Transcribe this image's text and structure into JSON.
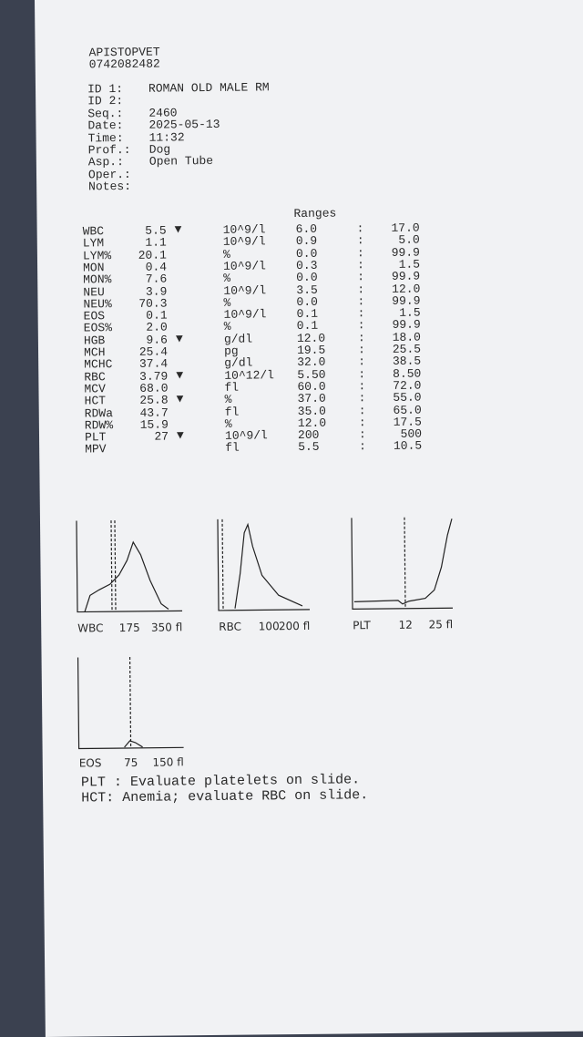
{
  "header": {
    "clinic": "APISTOPVET",
    "phone": "0742082482"
  },
  "info": [
    {
      "label": "ID 1:",
      "value": "ROMAN OLD MALE RM"
    },
    {
      "label": "ID 2:"
    },
    {
      "label": "Seq.:",
      "value": "2460"
    },
    {
      "label": "Date:",
      "value": "2025-05-13"
    },
    {
      "label": "Time:",
      "value": "11:32"
    },
    {
      "label": "Prof.:",
      "value": "Dog"
    },
    {
      "label": "Asp.:",
      "value": "Open Tube"
    },
    {
      "label": "Oper.:"
    },
    {
      "label": "Notes:"
    }
  ],
  "ranges_header": "Ranges",
  "range_separator": ":",
  "results": [
    {
      "name": "WBC",
      "value": "5.5",
      "flag": "▼",
      "unit": "10^9/l",
      "low": "6.0",
      "high": "17.0"
    },
    {
      "name": "LYM",
      "value": "1.1",
      "unit": "10^9/l",
      "low": "0.9",
      "high": "5.0"
    },
    {
      "name": "LYM%",
      "value": "20.1",
      "unit": "%",
      "low": "0.0",
      "high": "99.9"
    },
    {
      "name": "MON",
      "value": "0.4",
      "unit": "10^9/l",
      "low": "0.3",
      "high": "1.5"
    },
    {
      "name": "MON%",
      "value": "7.6",
      "unit": "%",
      "low": "0.0",
      "high": "99.9"
    },
    {
      "name": "NEU",
      "value": "3.9",
      "unit": "10^9/l",
      "low": "3.5",
      "high": "12.0"
    },
    {
      "name": "NEU%",
      "value": "70.3",
      "unit": "%",
      "low": "0.0",
      "high": "99.9"
    },
    {
      "name": "EOS",
      "value": "0.1",
      "unit": "10^9/l",
      "low": "0.1",
      "high": "1.5"
    },
    {
      "name": "EOS%",
      "value": "2.0",
      "unit": "%",
      "low": "0.1",
      "high": "99.9"
    },
    {
      "name": "HGB",
      "value": "9.6",
      "flag": "▼",
      "unit": "g/dl",
      "low": "12.0",
      "high": "18.0"
    },
    {
      "name": "MCH",
      "value": "25.4",
      "unit": "pg",
      "low": "19.5",
      "high": "25.5"
    },
    {
      "name": "MCHC",
      "value": "37.4",
      "unit": "g/dl",
      "low": "32.0",
      "high": "38.5"
    },
    {
      "name": "RBC",
      "value": "3.79",
      "flag": "▼",
      "unit": "10^12/l",
      "low": "5.50",
      "high": "8.50"
    },
    {
      "name": "MCV",
      "value": "68.0",
      "unit": "fl",
      "low": "60.0",
      "high": "72.0"
    },
    {
      "name": "HCT",
      "value": "25.8",
      "flag": "▼",
      "unit": "%",
      "low": "37.0",
      "high": "55.0"
    },
    {
      "name": "RDWa",
      "value": "43.7",
      "unit": "fl",
      "low": "35.0",
      "high": "65.0"
    },
    {
      "name": "RDW%",
      "value": "15.9",
      "unit": "%",
      "low": "12.0",
      "high": "17.5"
    },
    {
      "name": "PLT",
      "value": "27",
      "flag": "▼",
      "unit": "10^9/l",
      "low": "200",
      "high": "500"
    },
    {
      "name": "MPV",
      "unit": "fl",
      "low": "5.5",
      "high": "10.5"
    }
  ],
  "histograms": [
    {
      "label": "WBC",
      "ticks": [
        "175",
        "350 fl"
      ]
    },
    {
      "label": "RBC",
      "ticks": [
        "100",
        "200 fl"
      ]
    },
    {
      "label": "PLT",
      "ticks": [
        "12",
        "25 fl"
      ]
    },
    {
      "label": "EOS",
      "ticks": [
        "75",
        "150 fl"
      ]
    }
  ],
  "notes": [
    "PLT : Evaluate platelets on slide.",
    "HCT: Anemia; evaluate RBC on slide."
  ]
}
